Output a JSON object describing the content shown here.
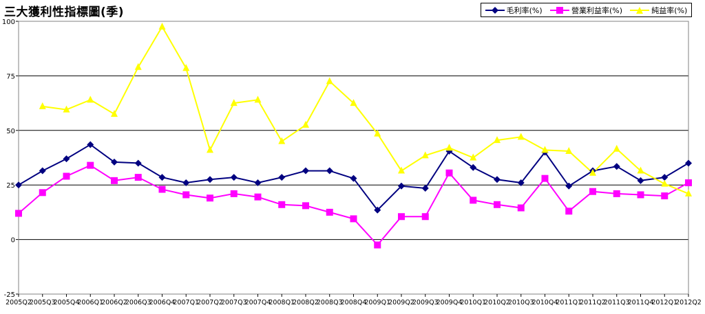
{
  "chart_data": {
    "type": "line",
    "title": "三大獲利性指標圖(季)",
    "ylim": [
      -25,
      100
    ],
    "yticks": [
      -25,
      0,
      25,
      50,
      75,
      100
    ],
    "grid": "horizontal",
    "legend_position": "top-right",
    "categories": [
      "2005Q2",
      "2005Q3",
      "2005Q4",
      "2006Q1",
      "2006Q2",
      "2006Q3",
      "2006Q4",
      "2007Q1",
      "2007Q2",
      "2007Q3",
      "2007Q4",
      "2008Q1",
      "2008Q2",
      "2008Q3",
      "2008Q4",
      "2009Q1",
      "2009Q2",
      "2009Q3",
      "2009Q4",
      "2010Q1",
      "2010Q2",
      "2010Q3",
      "2010Q4",
      "2011Q1",
      "2011Q2",
      "2011Q3",
      "2011Q4",
      "2012Q1",
      "2012Q2"
    ],
    "series": [
      {
        "name": "毛利率(%)",
        "color": "#000080",
        "marker": "diamond",
        "values": [
          25,
          31.5,
          37,
          43.5,
          35.5,
          35,
          28.5,
          26,
          27.5,
          28.5,
          26,
          28.5,
          31.5,
          31.5,
          28,
          13.5,
          24.5,
          23.5,
          40.5,
          33,
          27.5,
          26,
          40,
          24.5,
          31.5,
          33.5,
          27,
          28.5,
          35
        ]
      },
      {
        "name": "營業利益率(%)",
        "color": "#FF00FF",
        "marker": "square",
        "values": [
          12,
          21.5,
          29,
          34,
          27,
          28.5,
          23,
          20.5,
          19,
          21,
          19.5,
          16,
          15.5,
          12.5,
          9.5,
          -2.5,
          10.5,
          10.5,
          30.5,
          18,
          16,
          14.5,
          28,
          13,
          22,
          21,
          20.5,
          20,
          26
        ]
      },
      {
        "name": "純益率(%)",
        "color": "#FFFF00",
        "marker": "triangle",
        "values": [
          null,
          61,
          59.5,
          64,
          57.5,
          79,
          97.5,
          78.5,
          41,
          62.5,
          64,
          45,
          52.5,
          72.5,
          62.5,
          48.5,
          31.5,
          38.5,
          42,
          37.5,
          45.5,
          47,
          41,
          40.5,
          30.5,
          41.5,
          31.5,
          25.5,
          21
        ]
      }
    ]
  }
}
